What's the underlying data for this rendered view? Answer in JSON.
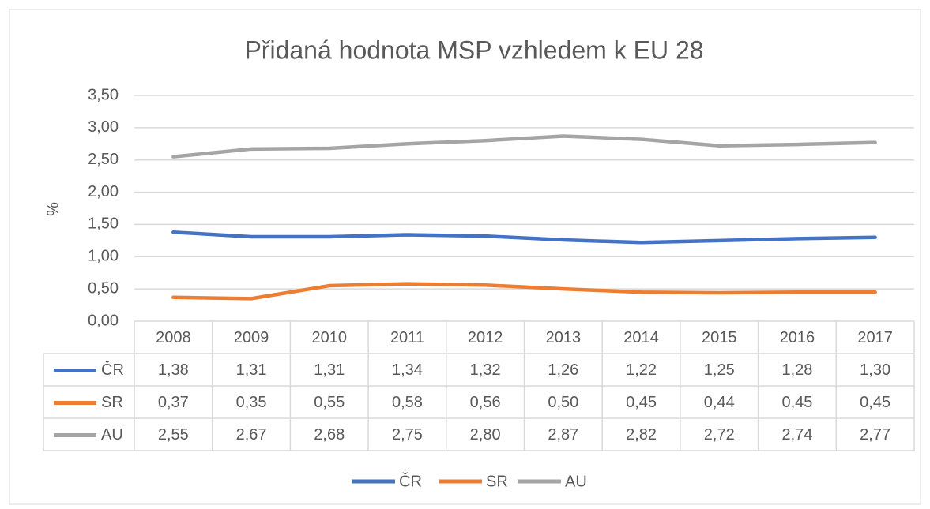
{
  "chart_data": {
    "type": "line",
    "title": "Přidaná hodnota MSP vzhledem k EU 28",
    "y_label": "%",
    "categories": [
      "2008",
      "2009",
      "2010",
      "2011",
      "2012",
      "2013",
      "2014",
      "2015",
      "2016",
      "2017"
    ],
    "series": [
      {
        "name": "ČR",
        "color": "#4472c4",
        "values": [
          1.38,
          1.31,
          1.31,
          1.34,
          1.32,
          1.26,
          1.22,
          1.25,
          1.28,
          1.3
        ],
        "value_labels": [
          "1,38",
          "1,31",
          "1,31",
          "1,34",
          "1,32",
          "1,26",
          "1,22",
          "1,25",
          "1,28",
          "1,30"
        ]
      },
      {
        "name": "SR",
        "color": "#ed7d31",
        "values": [
          0.37,
          0.35,
          0.55,
          0.58,
          0.56,
          0.5,
          0.45,
          0.44,
          0.45,
          0.45
        ],
        "value_labels": [
          "0,37",
          "0,35",
          "0,55",
          "0,58",
          "0,56",
          "0,50",
          "0,45",
          "0,44",
          "0,45",
          "0,45"
        ]
      },
      {
        "name": "AU",
        "color": "#a5a5a5",
        "values": [
          2.55,
          2.67,
          2.68,
          2.75,
          2.8,
          2.87,
          2.82,
          2.72,
          2.74,
          2.77
        ],
        "value_labels": [
          "2,55",
          "2,67",
          "2,68",
          "2,75",
          "2,80",
          "2,87",
          "2,82",
          "2,72",
          "2,74",
          "2,77"
        ]
      }
    ],
    "ylim": [
      0,
      3.5
    ],
    "yticks": [
      {
        "value": 0,
        "label": "0,00"
      },
      {
        "value": 0.5,
        "label": "0,50"
      },
      {
        "value": 1,
        "label": "1,00"
      },
      {
        "value": 1.5,
        "label": "1,50"
      },
      {
        "value": 2,
        "label": "2,00"
      },
      {
        "value": 2.5,
        "label": "2,50"
      },
      {
        "value": 3,
        "label": "3,00"
      },
      {
        "value": 3.5,
        "label": "3,50"
      }
    ],
    "grid": true,
    "legend": "bottom"
  }
}
